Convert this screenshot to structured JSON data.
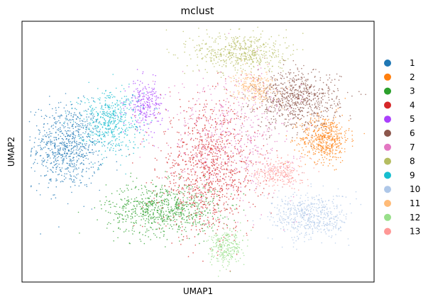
{
  "chart_data": {
    "type": "scatter",
    "title": "mclust",
    "xlabel": "UMAP1",
    "ylabel": "UMAP2",
    "grid": false,
    "legend_position": "right",
    "series": [
      {
        "name": "1",
        "color": "#1f77b4",
        "cx": 0.13,
        "cy": 0.52,
        "rx": 0.1,
        "ry": 0.16,
        "weight": 3
      },
      {
        "name": "2",
        "color": "#ff7f0e",
        "cx": 0.86,
        "cy": 0.55,
        "rx": 0.07,
        "ry": 0.09,
        "weight": 2
      },
      {
        "name": "3",
        "color": "#2ca02c",
        "cx": 0.4,
        "cy": 0.28,
        "rx": 0.16,
        "ry": 0.1,
        "weight": 3
      },
      {
        "name": "4",
        "color": "#d62728",
        "cx": 0.53,
        "cy": 0.43,
        "rx": 0.14,
        "ry": 0.25,
        "weight": 4
      },
      {
        "name": "5",
        "color": "#aa40fc",
        "cx": 0.35,
        "cy": 0.68,
        "rx": 0.05,
        "ry": 0.09,
        "weight": 1
      },
      {
        "name": "6",
        "color": "#8c564b",
        "cx": 0.78,
        "cy": 0.7,
        "rx": 0.12,
        "ry": 0.11,
        "weight": 3
      },
      {
        "name": "7",
        "color": "#e377c2",
        "cx": 0.6,
        "cy": 0.57,
        "rx": 0.18,
        "ry": 0.25,
        "weight": 2
      },
      {
        "name": "8",
        "color": "#b5bd61",
        "cx": 0.62,
        "cy": 0.88,
        "rx": 0.13,
        "ry": 0.08,
        "weight": 2
      },
      {
        "name": "9",
        "color": "#17becf",
        "cx": 0.25,
        "cy": 0.62,
        "rx": 0.09,
        "ry": 0.12,
        "weight": 2
      },
      {
        "name": "10",
        "color": "#aec7e8",
        "cx": 0.82,
        "cy": 0.25,
        "rx": 0.11,
        "ry": 0.09,
        "weight": 2
      },
      {
        "name": "11",
        "color": "#ffbb78",
        "cx": 0.66,
        "cy": 0.75,
        "rx": 0.06,
        "ry": 0.06,
        "weight": 1
      },
      {
        "name": "12",
        "color": "#98df8a",
        "cx": 0.58,
        "cy": 0.13,
        "rx": 0.05,
        "ry": 0.07,
        "weight": 1
      },
      {
        "name": "13",
        "color": "#ff9896",
        "cx": 0.73,
        "cy": 0.42,
        "rx": 0.07,
        "ry": 0.06,
        "weight": 1
      }
    ]
  }
}
